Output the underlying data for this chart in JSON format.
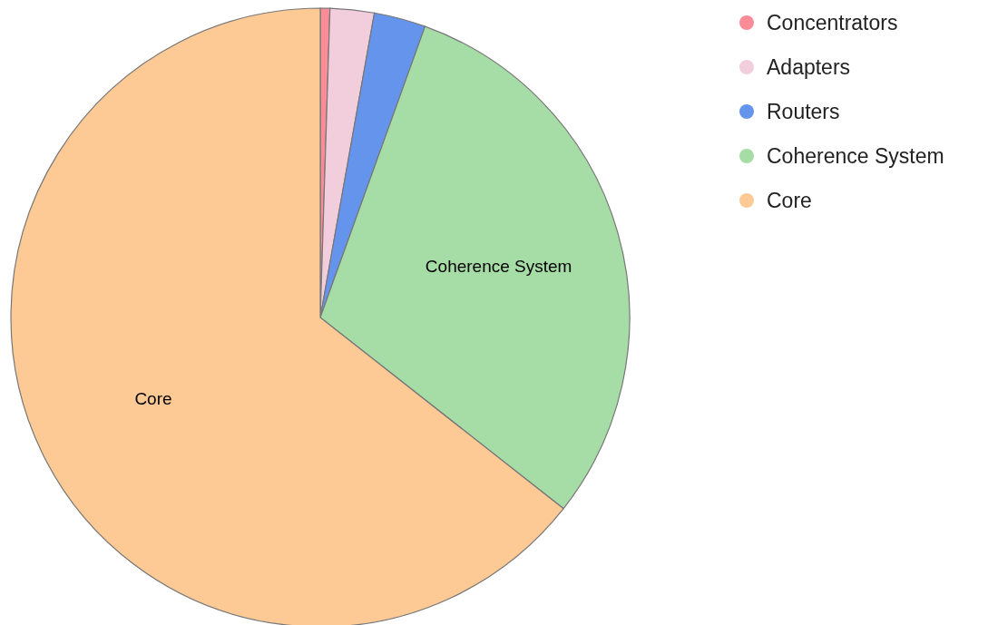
{
  "chart_data": {
    "type": "pie",
    "categories": [
      "Concentrators",
      "Adapters",
      "Routers",
      "Coherence System",
      "Core"
    ],
    "values": [
      0.5,
      2.3,
      2.7,
      30.1,
      64.4
    ],
    "colors": [
      "#f98c96",
      "#f2cddc",
      "#6494ec",
      "#a6dda6",
      "#fdc995"
    ],
    "legend": "top right"
  }
}
